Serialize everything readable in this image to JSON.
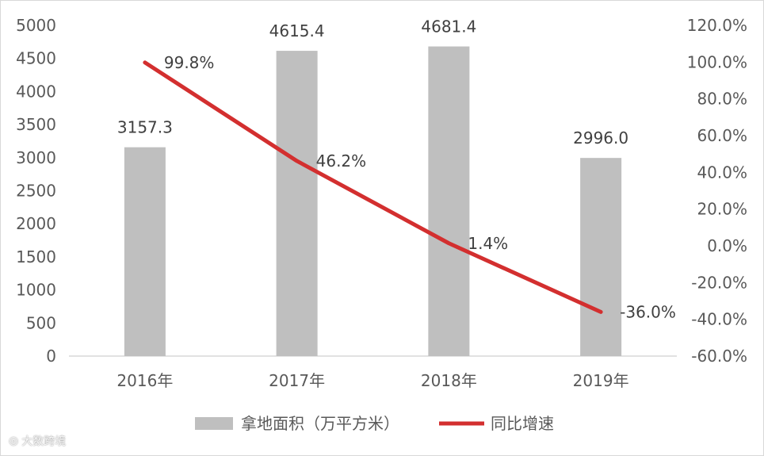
{
  "chart_data": {
    "type": "bar",
    "categories": [
      "2016年",
      "2017年",
      "2018年",
      "2019年"
    ],
    "series": [
      {
        "name": "拿地面积（万平方米）",
        "type": "bar",
        "axis": "left",
        "values": [
          3157.3,
          4615.4,
          4681.4,
          2996.0
        ],
        "labels": [
          "3157.3",
          "4615.4",
          "4681.4",
          "2996.0"
        ],
        "color": "#bfbfbf"
      },
      {
        "name": "同比增速",
        "type": "line",
        "axis": "right",
        "values": [
          99.8,
          46.2,
          1.4,
          -36.0
        ],
        "labels": [
          "99.8%",
          "46.2%",
          "1.4%",
          "-36.0%"
        ],
        "color": "#d32f2f"
      }
    ],
    "y_left": {
      "min": 0,
      "max": 5000,
      "step": 500,
      "ticks": [
        "0",
        "500",
        "1000",
        "1500",
        "2000",
        "2500",
        "3000",
        "3500",
        "4000",
        "4500",
        "5000"
      ]
    },
    "y_right": {
      "min": -60,
      "max": 120,
      "step": 20,
      "ticks": [
        "-60.0%",
        "-40.0%",
        "-20.0%",
        "0.0%",
        "20.0%",
        "40.0%",
        "60.0%",
        "80.0%",
        "100.0%",
        "120.0%"
      ]
    },
    "legend": {
      "position": "bottom"
    },
    "grid": false,
    "colors": {
      "axis": "#d9d9d9",
      "text": "#595959"
    }
  },
  "watermark": {
    "text": "大数跨境"
  }
}
